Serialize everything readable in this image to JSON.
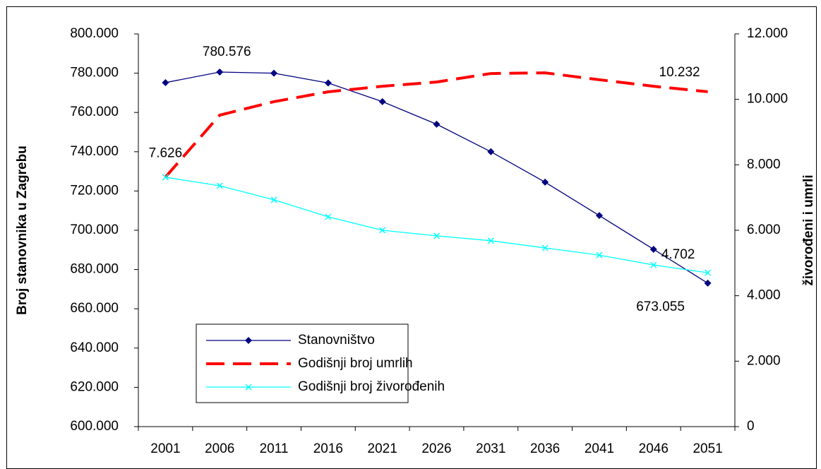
{
  "chart_data": {
    "type": "line",
    "categories": [
      "2001",
      "2006",
      "2011",
      "2016",
      "2021",
      "2026",
      "2031",
      "2036",
      "2041",
      "2046",
      "2051"
    ],
    "y_label": "Broj stanovnika u Zagrebu",
    "y2_label": "živorođeni i umrli",
    "ylim": [
      600000,
      800000
    ],
    "yticks": [
      {
        "value": 600000,
        "label": "600.000"
      },
      {
        "value": 620000,
        "label": "620.000"
      },
      {
        "value": 640000,
        "label": "640.000"
      },
      {
        "value": 660000,
        "label": "660.000"
      },
      {
        "value": 680000,
        "label": "680.000"
      },
      {
        "value": 700000,
        "label": "700.000"
      },
      {
        "value": 720000,
        "label": "720.000"
      },
      {
        "value": 740000,
        "label": "740.000"
      },
      {
        "value": 760000,
        "label": "760.000"
      },
      {
        "value": 780000,
        "label": "780.000"
      },
      {
        "value": 800000,
        "label": "800.000"
      }
    ],
    "y2lim": [
      0,
      12000
    ],
    "y2ticks": [
      0,
      {
        "value": 2000,
        "label": "2.000"
      },
      {
        "value": 4000,
        "label": "4.000"
      },
      {
        "value": 6000,
        "label": "6.000"
      },
      {
        "value": 8000,
        "label": "8.000"
      },
      {
        "value": 10000,
        "label": "10.000"
      },
      {
        "value": 12000,
        "label": "12.000"
      }
    ],
    "legend": "lower left",
    "series": [
      {
        "name": "Stanovništvo",
        "color": "#000080",
        "marker": "diamond",
        "axis": "y",
        "values": [
          775200,
          780576,
          780000,
          775000,
          765500,
          754000,
          740000,
          724500,
          707500,
          690300,
          673055
        ],
        "value_labels": [
          null,
          "780.576",
          null,
          null,
          null,
          null,
          null,
          null,
          null,
          null,
          "673.055"
        ]
      },
      {
        "name": "Godišnji broj umrlih",
        "color": "#ff0000",
        "dash": true,
        "axis": "y2",
        "values": [
          7626,
          9517,
          9930,
          10230,
          10400,
          10530,
          10790,
          10810,
          10600,
          10400,
          10232
        ],
        "value_labels": [
          "7.626",
          null,
          null,
          null,
          null,
          null,
          null,
          null,
          null,
          null,
          "10.232"
        ]
      },
      {
        "name": "Godišnji broj živorođenih",
        "color": "#00ffff",
        "marker": "x",
        "axis": "y2",
        "values": [
          7620,
          7360,
          6930,
          6410,
          6000,
          5830,
          5680,
          5460,
          5240,
          4940,
          4702
        ],
        "value_labels": [
          null,
          null,
          null,
          null,
          null,
          null,
          null,
          null,
          null,
          null,
          "4.702"
        ]
      }
    ]
  }
}
